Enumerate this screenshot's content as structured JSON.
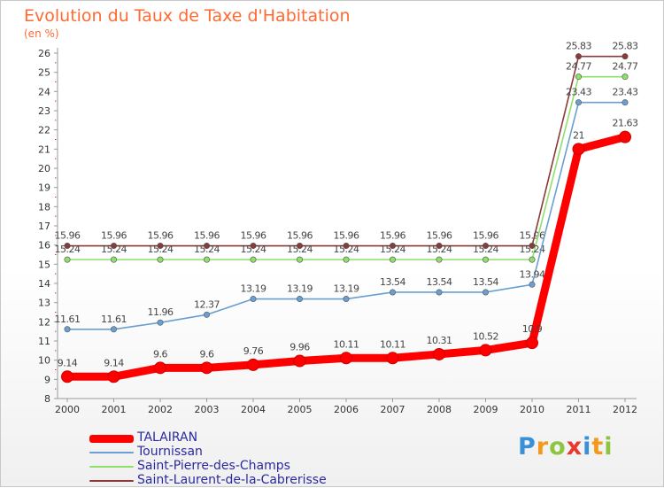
{
  "title": "Evolution du Taux de Taxe d'Habitation",
  "unit": "(en %)",
  "brand": {
    "letters": [
      "P",
      "r",
      "o",
      "x",
      "i",
      "t",
      "i"
    ],
    "colors": [
      "#3a8fd6",
      "#f39a1d",
      "#8cc63f",
      "#e8392c",
      "#3a8fd6",
      "#f39a1d",
      "#8cc63f"
    ]
  },
  "chart_data": {
    "type": "line",
    "title": "Evolution du Taux de Taxe d'Habitation",
    "ylabel": "(en %)",
    "xlabel": "",
    "x": [
      "2000",
      "2001",
      "2002",
      "2003",
      "2004",
      "2005",
      "2006",
      "2007",
      "2008",
      "2009",
      "2010",
      "2011",
      "2012"
    ],
    "ylim": [
      8,
      26
    ],
    "yticks": [
      "8",
      "9",
      "10",
      "11",
      "12",
      "13",
      "14",
      "15",
      "16",
      "17",
      "18",
      "19",
      "20",
      "21",
      "22",
      "23",
      "24",
      "25",
      "26"
    ],
    "grid": false,
    "legend_position": "bottom-left",
    "series": [
      {
        "name": "TALAIRAN",
        "color": "#ff0000",
        "values": [
          9.14,
          9.14,
          9.6,
          9.6,
          9.76,
          9.96,
          10.11,
          10.11,
          10.31,
          10.52,
          10.9,
          21,
          21.63
        ],
        "labels": [
          "9.14",
          "9.14",
          "9.6",
          "9.6",
          "9.76",
          "9.96",
          "10.11",
          "10.11",
          "10.31",
          "10.52",
          "10.9",
          "21",
          "21.63"
        ]
      },
      {
        "name": "Tournissan",
        "color": "#6a9fd0",
        "values": [
          11.61,
          11.61,
          11.96,
          12.37,
          13.19,
          13.19,
          13.19,
          13.54,
          13.54,
          13.54,
          13.94,
          23.43,
          23.43
        ],
        "labels": [
          "11.61",
          "11.61",
          "11.96",
          "12.37",
          "13.19",
          "13.19",
          "13.19",
          "13.54",
          "13.54",
          "13.54",
          "13.94",
          "23.43",
          "23.43"
        ]
      },
      {
        "name": "Saint-Pierre-des-Champs",
        "color": "#8ee06a",
        "values": [
          15.24,
          15.24,
          15.24,
          15.24,
          15.24,
          15.24,
          15.24,
          15.24,
          15.24,
          15.24,
          15.24,
          24.77,
          24.77
        ],
        "labels": [
          "15.24",
          "15.24",
          "15.24",
          "15.24",
          "15.24",
          "15.24",
          "15.24",
          "15.24",
          "15.24",
          "15.24",
          "15.24",
          "24.77",
          "24.77"
        ]
      },
      {
        "name": "Saint-Laurent-de-la-Cabrerisse",
        "color": "#8b3a3a",
        "values": [
          15.96,
          15.96,
          15.96,
          15.96,
          15.96,
          15.96,
          15.96,
          15.96,
          15.96,
          15.96,
          15.96,
          25.83,
          25.83
        ],
        "labels": [
          "15.96",
          "15.96",
          "15.96",
          "15.96",
          "15.96",
          "15.96",
          "15.96",
          "15.96",
          "15.96",
          "15.96",
          "15.96",
          "25.83",
          "25.83"
        ]
      }
    ]
  }
}
